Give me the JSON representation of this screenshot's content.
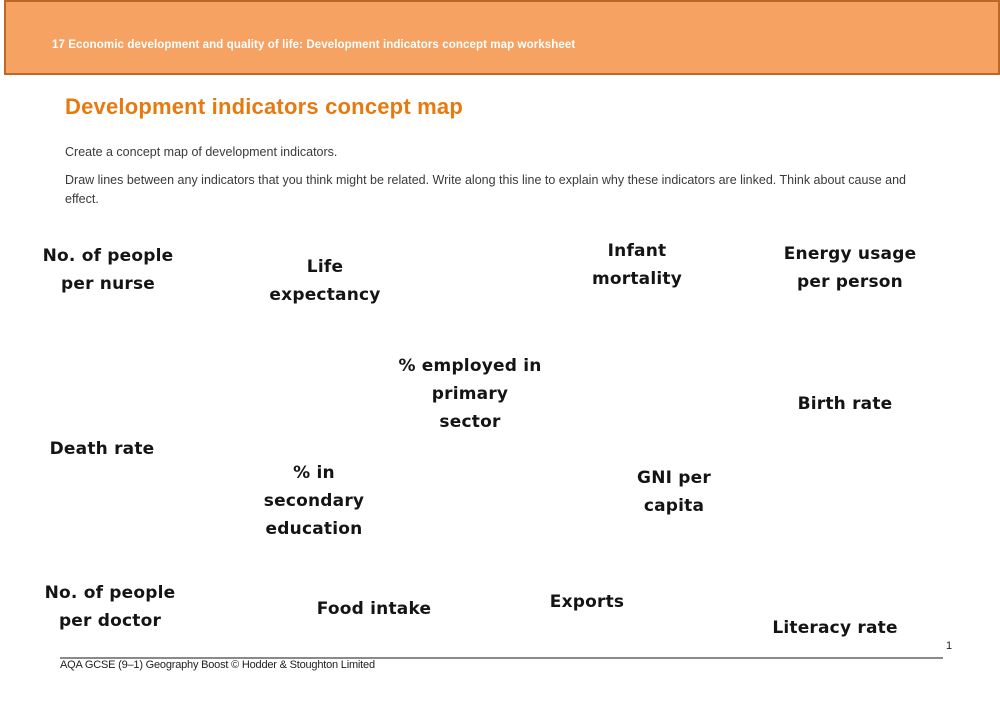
{
  "header": {
    "title": "17 Economic development and quality of life: Development indicators concept map worksheet"
  },
  "main": {
    "title": "Development indicators concept map",
    "instructions": [
      "Create a concept map of development indicators.",
      "Draw lines between any indicators that you think might be related. Write along this line to explain why these indicators are linked. Think about cause and effect."
    ]
  },
  "indicators": [
    {
      "name": "no-of-people-per-nurse",
      "text": "No. of people\nper nurse"
    },
    {
      "name": "life-expectancy",
      "text": "Life\nexpectancy"
    },
    {
      "name": "infant-mortality",
      "text": "Infant\nmortality"
    },
    {
      "name": "energy-usage-per-person",
      "text": "Energy usage\nper person"
    },
    {
      "name": "pct-employed-primary-sector",
      "text": "% employed in\nprimary\nsector"
    },
    {
      "name": "birth-rate",
      "text": "Birth rate"
    },
    {
      "name": "death-rate",
      "text": "Death rate"
    },
    {
      "name": "pct-in-secondary-education",
      "text": "% in\nsecondary\neducation"
    },
    {
      "name": "gni-per-capita",
      "text": "GNI per\ncapita"
    },
    {
      "name": "no-of-people-per-doctor",
      "text": "No. of people\nper doctor"
    },
    {
      "name": "food-intake",
      "text": "Food intake"
    },
    {
      "name": "exports",
      "text": "Exports"
    },
    {
      "name": "literacy-rate",
      "text": "Literacy rate"
    }
  ],
  "footer": {
    "text": "AQA GCSE (9–1) Geography Boost © Hodder & Stoughton Limited",
    "page_number": "1"
  },
  "colors": {
    "banner_fill": "#F5A263",
    "banner_border": "#BE6828",
    "accent_orange": "#E8790F"
  }
}
